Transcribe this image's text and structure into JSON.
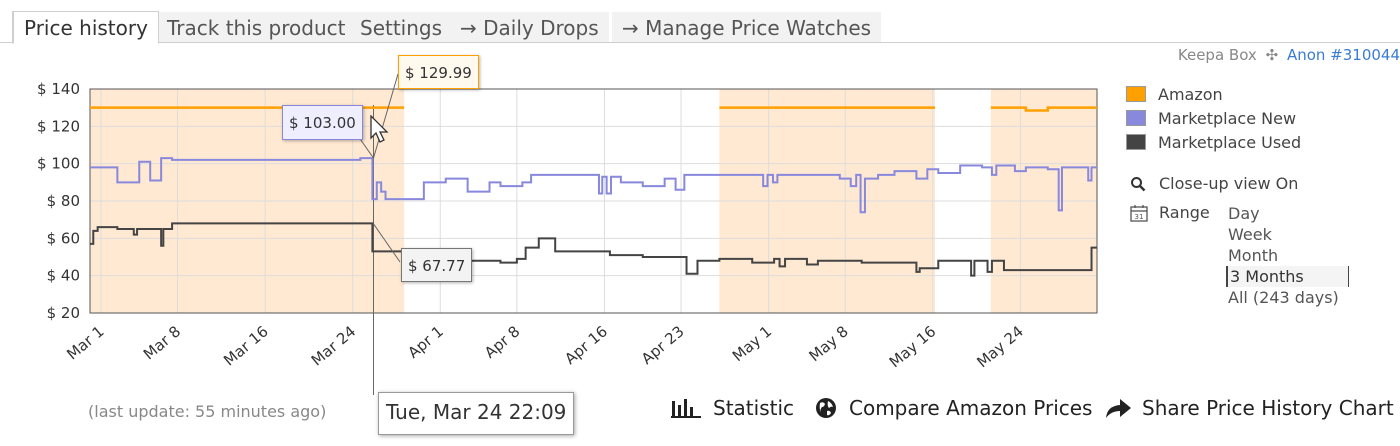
{
  "tabs": [
    {
      "label": "Price history",
      "active": true
    },
    {
      "label": "Track this product"
    },
    {
      "label": "Settings"
    },
    {
      "label": "→ Daily Drops"
    },
    {
      "label": "→ Manage Price Watches"
    }
  ],
  "keepa": {
    "box_label": "Keepa Box",
    "user": "Anon #310044"
  },
  "legend": [
    {
      "name": "Amazon",
      "color": "#ff9f00"
    },
    {
      "name": "Marketplace New",
      "color": "#8888dd"
    },
    {
      "name": "Marketplace Used",
      "color": "#444444"
    }
  ],
  "options": {
    "closeup": "Close-up view On",
    "range_label": "Range",
    "ranges": [
      "Day",
      "Week",
      "Month",
      "3 Months",
      "All (243 days)"
    ],
    "selected_range": "3 Months"
  },
  "footer": {
    "last_update": "(last update: 55 minutes ago)",
    "statistic": "Statistic",
    "compare": "Compare Amazon Prices",
    "share": "Share Price History Chart"
  },
  "tooltips": {
    "amazon": "$ 129.99",
    "new": "$ 103.00",
    "used": "$ 67.77",
    "date": "Tue, Mar 24 22:09"
  },
  "chart_data": {
    "type": "line",
    "x_unit": "day of year (Mar 1 = 0)",
    "xlim": [
      -1,
      91
    ],
    "ylim": [
      20,
      140
    ],
    "yticks": [
      140,
      120,
      100,
      80,
      60,
      40,
      20
    ],
    "ytick_labels": [
      "$ 140",
      "$ 120",
      "$ 100",
      "$ 80",
      "$ 60",
      "$ 40",
      "$ 20"
    ],
    "xticks": [
      {
        "label": "Mar 1",
        "x": 0
      },
      {
        "label": "Mar 8",
        "x": 7
      },
      {
        "label": "Mar 16",
        "x": 15
      },
      {
        "label": "Mar 24",
        "x": 23
      },
      {
        "label": "Apr 1",
        "x": 31
      },
      {
        "label": "Apr 8",
        "x": 38
      },
      {
        "label": "Apr 16",
        "x": 46
      },
      {
        "label": "Apr 23",
        "x": 53
      },
      {
        "label": "May 1",
        "x": 61
      },
      {
        "label": "May 8",
        "x": 68
      },
      {
        "label": "May 16",
        "x": 76
      },
      {
        "label": "May 24",
        "x": 84
      }
    ],
    "grid": true,
    "legend_position": "right",
    "amazon_shaded_ranges": [
      [
        -1,
        27.7
      ],
      [
        56.5,
        76.2
      ],
      [
        81.3,
        91
      ]
    ],
    "series": [
      {
        "name": "Amazon",
        "color": "#ff9f00",
        "segments": [
          [
            [
              -1,
              129.99
            ],
            [
              27.7,
              129.99
            ]
          ],
          [
            [
              56.5,
              129.99
            ],
            [
              76.2,
              129.99
            ]
          ],
          [
            [
              81.3,
              129.99
            ],
            [
              84.5,
              129.99
            ],
            [
              84.5,
              128.5
            ],
            [
              86.5,
              128.5
            ],
            [
              86.5,
              129.99
            ],
            [
              91,
              129.99
            ]
          ]
        ]
      },
      {
        "name": "Marketplace New",
        "color": "#8888dd",
        "points": [
          [
            -1,
            98
          ],
          [
            1.5,
            98
          ],
          [
            1.5,
            90
          ],
          [
            3.5,
            90
          ],
          [
            3.5,
            101
          ],
          [
            4.5,
            101
          ],
          [
            4.5,
            91
          ],
          [
            5.5,
            91
          ],
          [
            5.5,
            103
          ],
          [
            6.5,
            103
          ],
          [
            6.5,
            102
          ],
          [
            23.7,
            102
          ],
          [
            23.7,
            103
          ],
          [
            24.8,
            103
          ],
          [
            24.8,
            81
          ],
          [
            25.2,
            81
          ],
          [
            25.2,
            90
          ],
          [
            25.6,
            90
          ],
          [
            25.6,
            85
          ],
          [
            26,
            85
          ],
          [
            26,
            81
          ],
          [
            29.5,
            81
          ],
          [
            29.5,
            90
          ],
          [
            31.5,
            90
          ],
          [
            31.5,
            92
          ],
          [
            33.5,
            92
          ],
          [
            33.5,
            85
          ],
          [
            35.5,
            85
          ],
          [
            35.5,
            90
          ],
          [
            36.5,
            90
          ],
          [
            36.5,
            88
          ],
          [
            38.5,
            88
          ],
          [
            38.5,
            90
          ],
          [
            39.3,
            90
          ],
          [
            39.3,
            94
          ],
          [
            45.5,
            94
          ],
          [
            45.5,
            84
          ],
          [
            45.8,
            84
          ],
          [
            45.8,
            93
          ],
          [
            46.2,
            93
          ],
          [
            46.2,
            84
          ],
          [
            46.6,
            84
          ],
          [
            46.6,
            93
          ],
          [
            47.5,
            93
          ],
          [
            47.5,
            90
          ],
          [
            49.5,
            90
          ],
          [
            49.5,
            88
          ],
          [
            51.5,
            88
          ],
          [
            51.5,
            92
          ],
          [
            52.5,
            92
          ],
          [
            52.5,
            86
          ],
          [
            53.3,
            86
          ],
          [
            53.3,
            94
          ],
          [
            60.5,
            94
          ],
          [
            60.5,
            88
          ],
          [
            60.9,
            88
          ],
          [
            60.9,
            94
          ],
          [
            61.4,
            94
          ],
          [
            61.4,
            90
          ],
          [
            61.8,
            90
          ],
          [
            61.8,
            94
          ],
          [
            67.5,
            94
          ],
          [
            67.5,
            92
          ],
          [
            68.5,
            92
          ],
          [
            68.5,
            88
          ],
          [
            69,
            88
          ],
          [
            69,
            94
          ],
          [
            69.4,
            94
          ],
          [
            69.4,
            74
          ],
          [
            69.8,
            74
          ],
          [
            69.8,
            92
          ],
          [
            71,
            92
          ],
          [
            71,
            94
          ],
          [
            72.5,
            94
          ],
          [
            72.5,
            96
          ],
          [
            74.5,
            96
          ],
          [
            74.5,
            92
          ],
          [
            75.5,
            92
          ],
          [
            75.5,
            97
          ],
          [
            76.5,
            97
          ],
          [
            76.5,
            95
          ],
          [
            78.5,
            95
          ],
          [
            78.5,
            99
          ],
          [
            80.5,
            99
          ],
          [
            80.5,
            98
          ],
          [
            81.4,
            98
          ],
          [
            81.4,
            94
          ],
          [
            81.8,
            94
          ],
          [
            81.8,
            99
          ],
          [
            83.5,
            99
          ],
          [
            83.5,
            96
          ],
          [
            84.5,
            96
          ],
          [
            84.5,
            98
          ],
          [
            86.5,
            98
          ],
          [
            86.5,
            97
          ],
          [
            87.5,
            97
          ],
          [
            87.5,
            75
          ],
          [
            87.8,
            75
          ],
          [
            87.8,
            98
          ],
          [
            90.2,
            98
          ],
          [
            90.2,
            91
          ],
          [
            90.5,
            91
          ],
          [
            90.5,
            98
          ],
          [
            91,
            98
          ]
        ]
      },
      {
        "name": "Marketplace Used",
        "color": "#444444",
        "points": [
          [
            -1,
            57
          ],
          [
            -0.7,
            57
          ],
          [
            -0.7,
            64
          ],
          [
            -0.3,
            64
          ],
          [
            -0.3,
            66
          ],
          [
            1.5,
            66
          ],
          [
            1.5,
            65
          ],
          [
            3,
            65
          ],
          [
            3,
            62
          ],
          [
            3.3,
            62
          ],
          [
            3.3,
            65
          ],
          [
            5.5,
            65
          ],
          [
            5.5,
            56
          ],
          [
            5.7,
            56
          ],
          [
            5.7,
            65
          ],
          [
            6.5,
            65
          ],
          [
            6.5,
            68
          ],
          [
            24.8,
            68
          ],
          [
            24.8,
            53
          ],
          [
            27.5,
            53
          ],
          [
            27.5,
            52
          ],
          [
            31,
            52
          ],
          [
            31,
            51
          ],
          [
            33,
            51
          ],
          [
            33,
            48
          ],
          [
            36.5,
            48
          ],
          [
            36.5,
            47
          ],
          [
            38,
            47
          ],
          [
            38,
            49
          ],
          [
            38.8,
            49
          ],
          [
            38.8,
            55
          ],
          [
            40,
            55
          ],
          [
            40,
            60
          ],
          [
            41.5,
            60
          ],
          [
            41.5,
            53
          ],
          [
            46.5,
            53
          ],
          [
            46.5,
            51
          ],
          [
            49.5,
            51
          ],
          [
            49.5,
            50
          ],
          [
            53.5,
            50
          ],
          [
            53.5,
            41
          ],
          [
            54.5,
            41
          ],
          [
            54.5,
            48
          ],
          [
            56.5,
            48
          ],
          [
            56.5,
            49
          ],
          [
            59.5,
            49
          ],
          [
            59.5,
            47
          ],
          [
            61.5,
            47
          ],
          [
            61.5,
            49
          ],
          [
            62,
            49
          ],
          [
            62,
            45
          ],
          [
            62.5,
            45
          ],
          [
            62.5,
            49
          ],
          [
            64.5,
            49
          ],
          [
            64.5,
            46
          ],
          [
            65.5,
            46
          ],
          [
            65.5,
            48
          ],
          [
            69.5,
            48
          ],
          [
            69.5,
            47
          ],
          [
            74.5,
            47
          ],
          [
            74.5,
            42
          ],
          [
            74.8,
            42
          ],
          [
            74.8,
            44
          ],
          [
            76.5,
            44
          ],
          [
            76.5,
            48
          ],
          [
            79.5,
            48
          ],
          [
            79.5,
            40
          ],
          [
            79.8,
            40
          ],
          [
            79.8,
            48
          ],
          [
            81,
            48
          ],
          [
            81,
            42
          ],
          [
            81.4,
            42
          ],
          [
            81.4,
            48
          ],
          [
            82.5,
            48
          ],
          [
            82.5,
            43
          ],
          [
            90.5,
            43
          ],
          [
            90.5,
            55
          ],
          [
            91,
            55
          ]
        ]
      }
    ],
    "hover_x": 24.9
  }
}
